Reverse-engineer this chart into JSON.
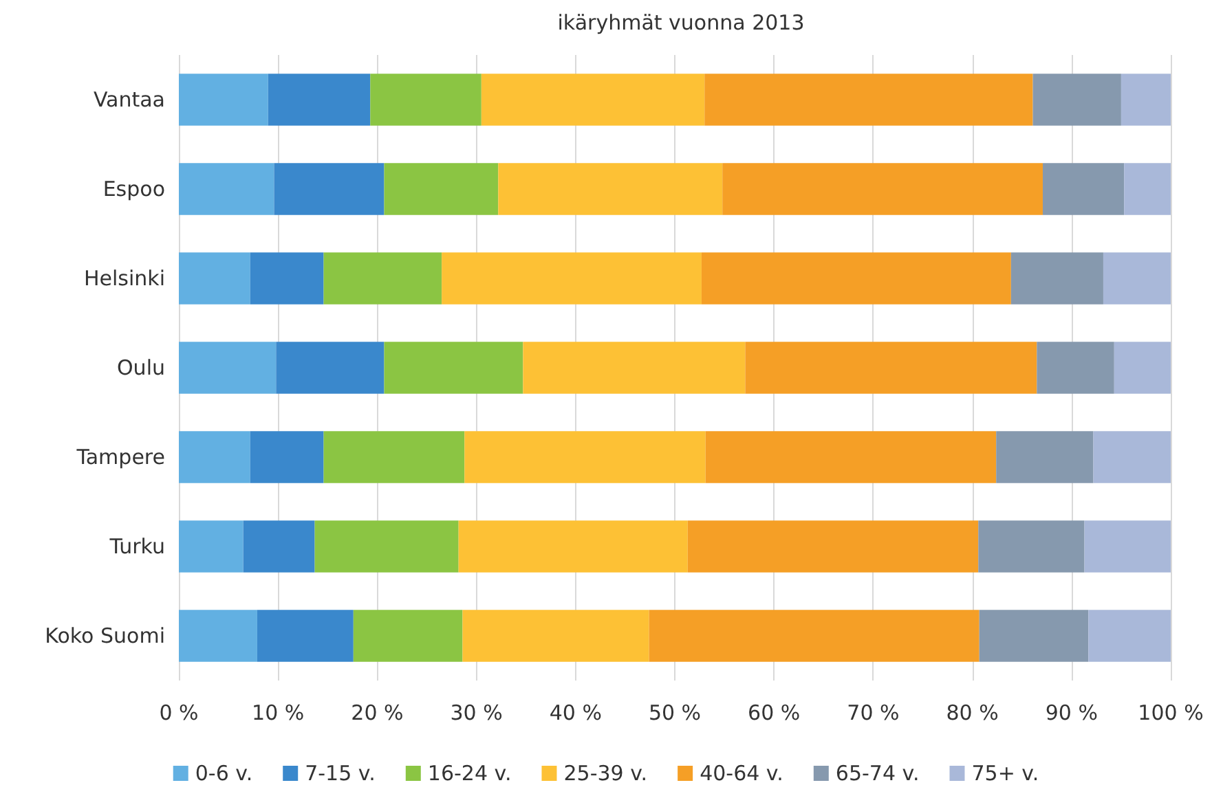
{
  "chart_data": {
    "type": "bar",
    "orientation": "horizontal",
    "stacked": true,
    "title": "ikäryhmät vuonna 2013",
    "categories": [
      "Vantaa",
      "Espoo",
      "Helsinki",
      "Oulu",
      "Tampere",
      "Turku",
      "Koko Suomi"
    ],
    "series": [
      {
        "name": "0-6 v.",
        "color": "#62b0e2",
        "values": [
          9.0,
          9.6,
          7.2,
          9.8,
          7.2,
          6.5,
          7.9
        ]
      },
      {
        "name": "7-15 v.",
        "color": "#3a88cc",
        "values": [
          10.3,
          11.1,
          7.4,
          10.9,
          7.4,
          7.2,
          9.7
        ]
      },
      {
        "name": "16-24 v.",
        "color": "#8bc543",
        "values": [
          11.2,
          11.5,
          11.9,
          14.0,
          14.2,
          14.5,
          11.0
        ]
      },
      {
        "name": "25-39 v.",
        "color": "#fdc135",
        "values": [
          22.5,
          22.6,
          26.2,
          22.4,
          24.3,
          23.1,
          18.8
        ]
      },
      {
        "name": "40-64 v.",
        "color": "#f59f26",
        "values": [
          33.1,
          32.3,
          31.2,
          29.4,
          29.3,
          29.3,
          33.3
        ]
      },
      {
        "name": "65-74 v.",
        "color": "#8699ae",
        "values": [
          8.9,
          8.2,
          9.3,
          7.8,
          9.8,
          10.7,
          11.0
        ]
      },
      {
        "name": "75+ v.",
        "color": "#a9b8d9",
        "values": [
          5.0,
          4.7,
          6.8,
          5.7,
          7.8,
          8.7,
          8.3
        ]
      }
    ],
    "xlim": [
      0,
      100
    ],
    "xticks": [
      {
        "value": 0,
        "label": "0 %"
      },
      {
        "value": 10,
        "label": "10 %"
      },
      {
        "value": 20,
        "label": "20 %"
      },
      {
        "value": 30,
        "label": "30 %"
      },
      {
        "value": 40,
        "label": "40 %"
      },
      {
        "value": 50,
        "label": "50 %"
      },
      {
        "value": 60,
        "label": "60 %"
      },
      {
        "value": 70,
        "label": "70 %"
      },
      {
        "value": 80,
        "label": "80 %"
      },
      {
        "value": 90,
        "label": "90 %"
      },
      {
        "value": 100,
        "label": "100 %"
      }
    ],
    "grid": "x",
    "legend": "bottom"
  }
}
